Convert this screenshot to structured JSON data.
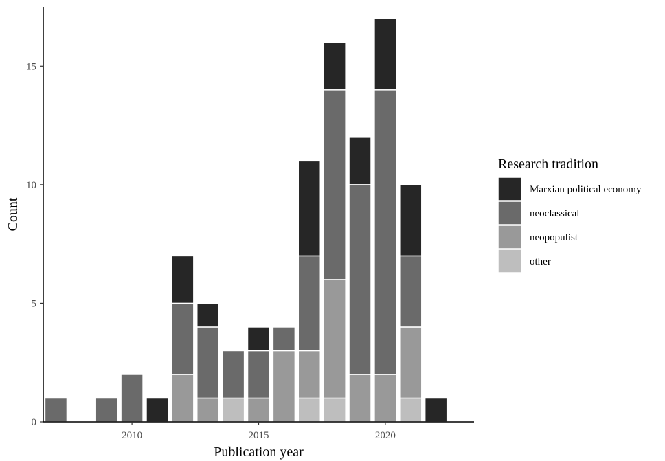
{
  "chart_data": {
    "type": "bar",
    "stacked": true,
    "xlabel": "Publication year",
    "ylabel": "Count",
    "x_ticks": [
      2010,
      2015,
      2020
    ],
    "y_ticks": [
      0,
      5,
      10,
      15
    ],
    "xlim": [
      2006.5,
      2023.5
    ],
    "ylim": [
      0,
      17.5
    ],
    "grid": false,
    "legend": {
      "title": "Research tradition",
      "position": "right"
    },
    "years": [
      2007,
      2008,
      2009,
      2010,
      2011,
      2012,
      2013,
      2014,
      2015,
      2016,
      2017,
      2018,
      2019,
      2020,
      2021,
      2022
    ],
    "series": [
      {
        "name": "other",
        "color": "#bebebe",
        "values": [
          0,
          0,
          0,
          0,
          0,
          0,
          0,
          1,
          0,
          0,
          1,
          1,
          0,
          0,
          1,
          0
        ]
      },
      {
        "name": "neopopulist",
        "color": "#999999",
        "values": [
          0,
          0,
          0,
          0,
          0,
          2,
          1,
          0,
          1,
          3,
          2,
          5,
          2,
          2,
          3,
          0
        ]
      },
      {
        "name": "neoclassical",
        "color": "#6a6a6a",
        "values": [
          1,
          0,
          1,
          2,
          0,
          3,
          3,
          2,
          2,
          1,
          4,
          8,
          8,
          12,
          3,
          0
        ]
      },
      {
        "name": "Marxian political economy",
        "color": "#262626",
        "values": [
          0,
          0,
          0,
          0,
          1,
          2,
          1,
          0,
          1,
          0,
          4,
          2,
          2,
          3,
          3,
          1
        ]
      }
    ],
    "legend_order": [
      "Marxian political economy",
      "neoclassical",
      "neopopulist",
      "other"
    ]
  }
}
